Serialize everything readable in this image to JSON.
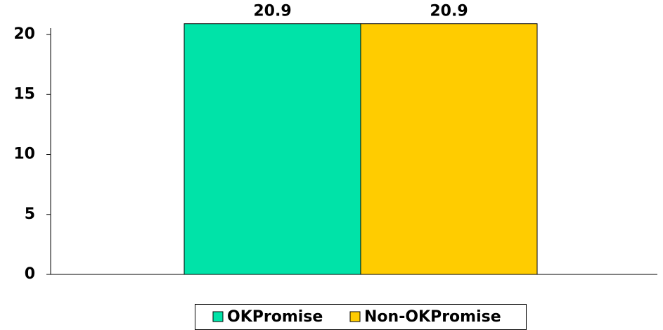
{
  "chart_data": {
    "type": "bar",
    "categories": [
      null
    ],
    "series": [
      {
        "name": "OKPromise",
        "color": "#00e3a8",
        "values": [
          20.9
        ]
      },
      {
        "name": "Non-OKPromise",
        "color": "#ffcc00",
        "values": [
          20.9
        ]
      }
    ],
    "ylim": [
      0,
      21
    ],
    "yticks": [
      0,
      5,
      10,
      15,
      20
    ],
    "grid": false,
    "legend": "bottom"
  }
}
